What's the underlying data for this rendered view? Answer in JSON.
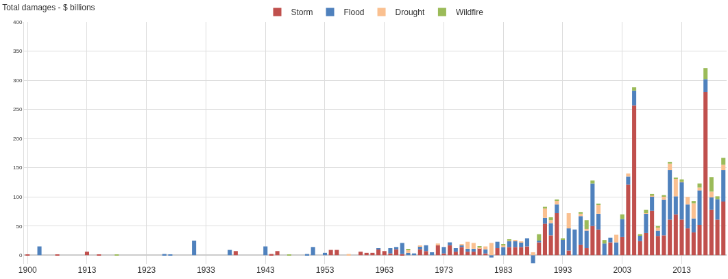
{
  "chart_data": {
    "type": "bar",
    "stacked": true,
    "title": "Total damages - $ billions",
    "categories": [
      "1900",
      null,
      null,
      null,
      null,
      null,
      null,
      null,
      null,
      null,
      "1913",
      null,
      null,
      null,
      null,
      null,
      null,
      null,
      null,
      null,
      "1923",
      null,
      null,
      null,
      null,
      null,
      null,
      null,
      null,
      null,
      "1933",
      null,
      null,
      null,
      null,
      null,
      null,
      null,
      null,
      null,
      "1943",
      null,
      null,
      null,
      null,
      null,
      null,
      null,
      null,
      null,
      "1953",
      null,
      null,
      null,
      null,
      null,
      null,
      null,
      null,
      null,
      "1963",
      null,
      null,
      null,
      null,
      null,
      null,
      null,
      null,
      null,
      "1973",
      null,
      null,
      null,
      null,
      null,
      null,
      null,
      null,
      null,
      "1983",
      null,
      null,
      null,
      null,
      null,
      null,
      null,
      null,
      null,
      "1993",
      null,
      null,
      null,
      null,
      null,
      null,
      null,
      null,
      null,
      "2003",
      null,
      null,
      null,
      null,
      null,
      null,
      null,
      null,
      null,
      "2013",
      null,
      null,
      null,
      null,
      null,
      null,
      null
    ],
    "series": [
      {
        "name": "Storm",
        "color": "#c0504d",
        "values": [
          1,
          null,
          null,
          null,
          null,
          1,
          null,
          null,
          null,
          null,
          6,
          null,
          1,
          null,
          null,
          null,
          null,
          null,
          null,
          null,
          null,
          null,
          null,
          null,
          null,
          null,
          null,
          null,
          null,
          null,
          null,
          null,
          null,
          null,
          null,
          7,
          null,
          null,
          null,
          null,
          null,
          2,
          7,
          null,
          null,
          null,
          null,
          null,
          null,
          null,
          null,
          9,
          9,
          null,
          null,
          null,
          6,
          4,
          4,
          10,
          7,
          3,
          10,
          2,
          null,
          null,
          10,
          7,
          null,
          17,
          3,
          17,
          6,
          14,
          6,
          6,
          12,
          3,
          null,
          12,
          null,
          14,
          14,
          14,
          15,
          null,
          22,
          54,
          34,
          72,
          null,
          8,
          null,
          18,
          12,
          50,
          44,
          null,
          22,
          null,
          31,
          121,
          257,
          24,
          38,
          76,
          33,
          34,
          61,
          70,
          61,
          46,
          39,
          52,
          280,
          78,
          61,
          92
        ]
      },
      {
        "name": "Flood",
        "color": "#4f81bd",
        "values": [
          null,
          null,
          15,
          null,
          null,
          null,
          null,
          null,
          null,
          null,
          null,
          null,
          null,
          null,
          null,
          null,
          null,
          null,
          null,
          null,
          null,
          null,
          null,
          2,
          1,
          null,
          null,
          null,
          25,
          null,
          null,
          null,
          null,
          null,
          9,
          null,
          null,
          null,
          null,
          null,
          15,
          null,
          null,
          null,
          null,
          null,
          null,
          2,
          14,
          null,
          4,
          null,
          null,
          null,
          null,
          null,
          null,
          null,
          null,
          1,
          null,
          9,
          4,
          19,
          4,
          3,
          5,
          10,
          5,
          null,
          11,
          5,
          6,
          3,
          5,
          5,
          null,
          7,
          -4,
          11,
          14,
          10,
          10,
          8,
          14,
          -14,
          3,
          10,
          21,
          15,
          27,
          38,
          44,
          49,
          30,
          73,
          27,
          20,
          8,
          22,
          31,
          14,
          25,
          10,
          33,
          25,
          9,
          61,
          85,
          31,
          64,
          41,
          24,
          59,
          22,
          21,
          35,
          54
        ]
      },
      {
        "name": "Drought",
        "color": "#fac090",
        "values": [
          null,
          null,
          null,
          null,
          null,
          null,
          null,
          null,
          null,
          null,
          null,
          null,
          null,
          null,
          null,
          null,
          null,
          null,
          null,
          null,
          null,
          null,
          null,
          null,
          null,
          null,
          null,
          null,
          null,
          null,
          null,
          null,
          null,
          null,
          null,
          null,
          null,
          null,
          null,
          null,
          null,
          null,
          null,
          null,
          null,
          null,
          null,
          null,
          null,
          null,
          null,
          null,
          null,
          null,
          2,
          null,
          null,
          null,
          null,
          null,
          null,
          null,
          null,
          null,
          5,
          null,
          1,
          null,
          null,
          3,
          null,
          null,
          null,
          1,
          12,
          10,
          2,
          5,
          21,
          null,
          3,
          2,
          1,
          1,
          null,
          5,
          null,
          16,
          5,
          7,
          null,
          26,
          null,
          4,
          3,
          null,
          16,
          null,
          null,
          13,
          null,
          5,
          null,
          null,
          1,
          1,
          6,
          6,
          11,
          30,
          1,
          13,
          26,
          5,
          null,
          10,
          null,
          9
        ]
      },
      {
        "name": "Wildfire",
        "color": "#9bbb59",
        "values": [
          null,
          null,
          null,
          null,
          null,
          null,
          null,
          null,
          null,
          null,
          null,
          null,
          null,
          null,
          null,
          1,
          null,
          null,
          null,
          null,
          null,
          null,
          null,
          null,
          null,
          null,
          null,
          null,
          null,
          null,
          null,
          null,
          null,
          null,
          null,
          null,
          null,
          null,
          null,
          null,
          null,
          null,
          null,
          null,
          1,
          null,
          null,
          null,
          null,
          null,
          null,
          null,
          null,
          null,
          null,
          null,
          null,
          null,
          null,
          null,
          null,
          null,
          null,
          null,
          1,
          null,
          null,
          null,
          null,
          null,
          null,
          null,
          null,
          null,
          null,
          null,
          1,
          null,
          null,
          null,
          2,
          1,
          null,
          null,
          null,
          null,
          11,
          3,
          5,
          1,
          2,
          null,
          null,
          3,
          15,
          5,
          1,
          6,
          null,
          null,
          8,
          null,
          6,
          2,
          6,
          3,
          2,
          2,
          3,
          1,
          4,
          null,
          4,
          7,
          19,
          25,
          5,
          12
        ]
      }
    ],
    "ylim": [
      -15,
      400
    ],
    "yticks": [
      0,
      50,
      100,
      150,
      200,
      250,
      300,
      350,
      400
    ],
    "grid": true,
    "legend": "top"
  }
}
